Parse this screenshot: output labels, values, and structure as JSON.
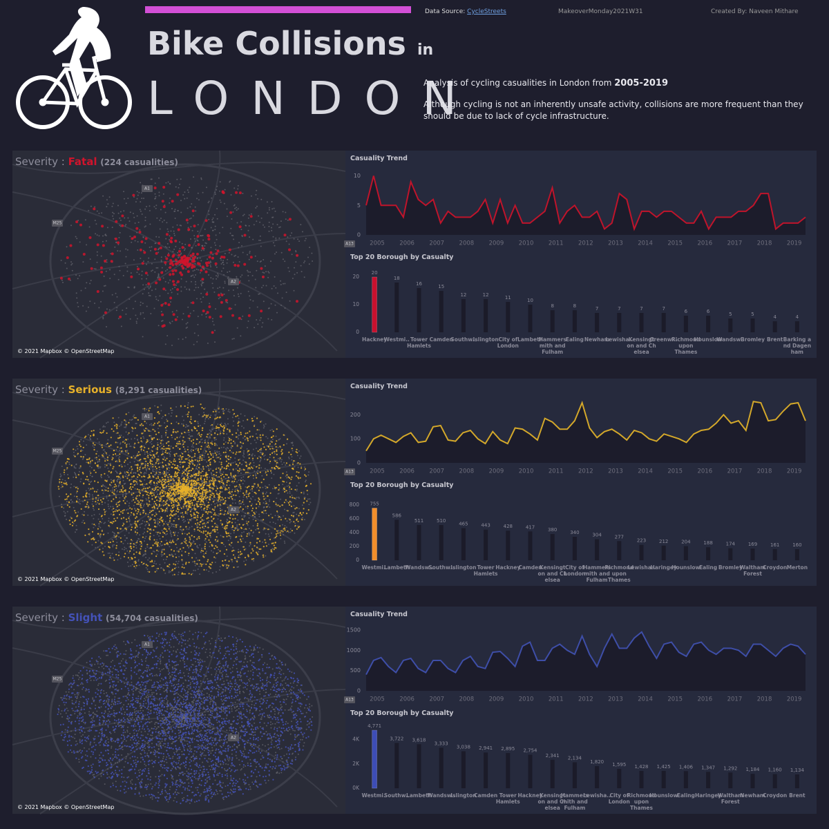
{
  "header": {
    "title": "Bike Collisions",
    "title_in": "in",
    "title_city": "LONDON",
    "source_label": "Data Source:",
    "source_link": "CycleStreets",
    "tag": "MakeoverMonday2021W31",
    "credit": "Created By: Naveen Mithare",
    "intro": "Analysis of cycling casualities in London from",
    "intro_years": "2005-2019",
    "description": "Although cycling is not an inherently unsafe activity, collisions are more frequent than they should be due to lack of cycle infrastructure."
  },
  "panels": [
    {
      "severity_label": "Severity :",
      "severity": "Fatal",
      "count": "(224 casualities)",
      "color": "#d0142c",
      "map_credit": "© 2021 Mapbox © OpenStreetMap",
      "map_labels": [
        "A1",
        "M25",
        "A13",
        "A2"
      ]
    },
    {
      "severity_label": "Severity :",
      "severity": "Serious",
      "count": "(8,291 casualities)",
      "color": "#e8b22a",
      "map_credit": "© 2021 Mapbox © OpenStreetMap",
      "map_labels": [
        "A1",
        "M25",
        "A13",
        "A2"
      ]
    },
    {
      "severity_label": "Severity :",
      "severity": "Slight",
      "count": "(54,704 casualities)",
      "color": "#4452b8",
      "map_credit": "© 2021 Mapbox © OpenStreetMap",
      "map_labels": [
        "A1",
        "M25",
        "A13",
        "A2"
      ]
    }
  ],
  "chart_data": [
    {
      "type": "line",
      "title": "Casuality Trend",
      "color": "#c0142b",
      "ylim": [
        0,
        11
      ],
      "yticks": [
        0,
        5,
        10
      ],
      "categories": [
        "2005",
        null,
        null,
        null,
        "2006",
        null,
        null,
        null,
        "2007",
        null,
        null,
        null,
        "2008",
        null,
        null,
        null,
        "2009",
        null,
        null,
        null,
        "2010",
        null,
        null,
        null,
        "2011",
        null,
        null,
        null,
        "2012",
        null,
        null,
        null,
        "2013",
        null,
        null,
        null,
        "2014",
        null,
        null,
        null,
        "2015",
        null,
        null,
        null,
        "2016",
        null,
        null,
        null,
        "2017",
        null,
        null,
        null,
        "2018",
        null,
        null,
        null,
        "2019",
        null,
        null,
        null
      ],
      "values": [
        5,
        10,
        5,
        5,
        5,
        3,
        9,
        6,
        5,
        6,
        2,
        4,
        3,
        3,
        3,
        4,
        6,
        2,
        6,
        2,
        5,
        2,
        2,
        3,
        4,
        8,
        2,
        4,
        5,
        3,
        3,
        4,
        1,
        2,
        7,
        6,
        1,
        4,
        4,
        3,
        4,
        4,
        3,
        2,
        2,
        4,
        1,
        3,
        3,
        3,
        4,
        4,
        5,
        7,
        7,
        1,
        2,
        2,
        2,
        3
      ]
    },
    {
      "type": "bar",
      "title": "Top 20 Borough by Casualty",
      "ylim": [
        0,
        22
      ],
      "yticks": [
        0,
        10,
        20
      ],
      "categories": [
        "Hackney",
        "Westmi..",
        "Tower\nHamlets",
        "Camden",
        "Southw..",
        "Islington",
        "City of\nLondon",
        "Lambeth",
        "Hammers\nmith and\nFulham",
        "Ealing",
        "Newham",
        "Lewisha..",
        "Kensingt\non and Ch\nelsea",
        "Greenwi..",
        "Richmond\nupon\nThames",
        "Hounslow",
        "Wandsw..",
        "Bromley",
        "Brent",
        "Barking a\nnd Dagen\nham"
      ],
      "values": [
        20,
        18,
        16,
        15,
        12,
        12,
        11,
        10,
        8,
        8,
        7,
        7,
        7,
        7,
        6,
        6,
        5,
        5,
        4,
        4
      ],
      "colors": [
        "#c8102e",
        "#1b1b29",
        "#1b1b29",
        "#1b1b29",
        "#1b1b29",
        "#1b1b29",
        "#1b1b29",
        "#1b1b29",
        "#1b1b29",
        "#1b1b29",
        "#1b1b29",
        "#1b1b29",
        "#1b1b29",
        "#1b1b29",
        "#1b1b29",
        "#1b1b29",
        "#1b1b29",
        "#1b1b29",
        "#1b1b29",
        "#1b1b29"
      ]
    },
    {
      "type": "line",
      "title": "Casuality Trend",
      "color": "#d4a82a",
      "ylim": [
        0,
        270
      ],
      "yticks": [
        0,
        100,
        200
      ],
      "categories": [
        "2005",
        null,
        null,
        null,
        "2006",
        null,
        null,
        null,
        "2007",
        null,
        null,
        null,
        "2008",
        null,
        null,
        null,
        "2009",
        null,
        null,
        null,
        "2010",
        null,
        null,
        null,
        "2011",
        null,
        null,
        null,
        "2012",
        null,
        null,
        null,
        "2013",
        null,
        null,
        null,
        "2014",
        null,
        null,
        null,
        "2015",
        null,
        null,
        null,
        "2016",
        null,
        null,
        null,
        "2017",
        null,
        null,
        null,
        "2018",
        null,
        null,
        null,
        "2019",
        null,
        null,
        null
      ],
      "values": [
        50,
        100,
        115,
        100,
        85,
        110,
        125,
        85,
        90,
        150,
        155,
        95,
        90,
        125,
        135,
        100,
        80,
        130,
        95,
        80,
        145,
        140,
        120,
        95,
        185,
        170,
        140,
        140,
        175,
        250,
        145,
        105,
        130,
        140,
        120,
        95,
        135,
        125,
        100,
        90,
        120,
        110,
        100,
        85,
        120,
        135,
        140,
        165,
        200,
        165,
        175,
        135,
        255,
        250,
        175,
        180,
        215,
        245,
        250,
        175
      ]
    },
    {
      "type": "bar",
      "title": "Top 20 Borough by Casualty",
      "ylim": [
        0,
        880
      ],
      "yticks": [
        0,
        200,
        400,
        600,
        800
      ],
      "categories": [
        "Westmi..",
        "Lambeth",
        "Wandsw..",
        "Southw..",
        "Islington",
        "Tower\nHamlets",
        "Hackney",
        "Camden",
        "Kensingt\non and Ch\nelsea",
        "City of\nLondon",
        "Hammers\nmith and\nFulham",
        "Richmond\nupon\nThames",
        "Lewisha..",
        "Haringey",
        "Hounslow",
        "Ealing",
        "Bromley",
        "Waltham\nForest",
        "Croydon",
        "Merton"
      ],
      "values": [
        755,
        586,
        511,
        510,
        465,
        443,
        428,
        417,
        380,
        340,
        304,
        277,
        223,
        212,
        204,
        188,
        174,
        169,
        161,
        160
      ],
      "colors": [
        "#f28e2b",
        "#1b1b29",
        "#1b1b29",
        "#1b1b29",
        "#1b1b29",
        "#1b1b29",
        "#1b1b29",
        "#1b1b29",
        "#1b1b29",
        "#1b1b29",
        "#1b1b29",
        "#1b1b29",
        "#1b1b29",
        "#1b1b29",
        "#1b1b29",
        "#1b1b29",
        "#1b1b29",
        "#1b1b29",
        "#1b1b29",
        "#1b1b29"
      ]
    },
    {
      "type": "line",
      "title": "Casuality Trend",
      "color": "#3e4ea8",
      "ylim": [
        0,
        1600
      ],
      "yticks": [
        0,
        500,
        1000,
        1500
      ],
      "categories": [
        "2005",
        null,
        null,
        null,
        "2006",
        null,
        null,
        null,
        "2007",
        null,
        null,
        null,
        "2008",
        null,
        null,
        null,
        "2009",
        null,
        null,
        null,
        "2010",
        null,
        null,
        null,
        "2011",
        null,
        null,
        null,
        "2012",
        null,
        null,
        null,
        "2013",
        null,
        null,
        null,
        "2014",
        null,
        null,
        null,
        "2015",
        null,
        null,
        null,
        "2016",
        null,
        null,
        null,
        "2017",
        null,
        null,
        null,
        "2018",
        null,
        null,
        null,
        "2019",
        null,
        null,
        null
      ],
      "values": [
        400,
        750,
        820,
        600,
        450,
        750,
        800,
        550,
        450,
        750,
        750,
        550,
        450,
        750,
        850,
        600,
        550,
        950,
        970,
        800,
        600,
        1100,
        1200,
        750,
        750,
        1050,
        1150,
        1000,
        900,
        1350,
        900,
        600,
        1050,
        1400,
        1050,
        1050,
        1300,
        1450,
        1100,
        800,
        1150,
        1200,
        950,
        850,
        1150,
        1200,
        1000,
        900,
        1050,
        1050,
        1000,
        850,
        1150,
        1150,
        1000,
        850,
        1050,
        1150,
        1100,
        900
      ]
    },
    {
      "type": "bar",
      "title": "Top 20 Borough by Casualty",
      "ylim": [
        0,
        5000
      ],
      "yticks": [
        {
          "value": 0,
          "label": "0K"
        },
        {
          "value": 2000,
          "label": "2K"
        },
        {
          "value": 4000,
          "label": "4K"
        }
      ],
      "categories": [
        "Westmi..",
        "Southw..",
        "Lambeth",
        "Wandsw..",
        "Islington",
        "Camden",
        "Tower\nHamlets",
        "Hackney",
        "Kensingt\non and Ch\nelsea",
        "Hammers\nmith and\nFulham",
        "Lewisha..",
        "City of\nLondon",
        "Richmond\nupon\nThames",
        "Hounslow",
        "Ealing",
        "Haringey",
        "Waltham\nForest",
        "Newham",
        "Croydon",
        "Brent"
      ],
      "values": [
        4771,
        3722,
        3618,
        3333,
        3038,
        2941,
        2895,
        2754,
        2341,
        2134,
        1820,
        1595,
        1428,
        1425,
        1406,
        1347,
        1292,
        1184,
        1160,
        1134
      ],
      "value_labels": [
        "4,771",
        "3,722",
        "3,618",
        "3,333",
        "3,038",
        "2,941",
        "2,895",
        "2,754",
        "2,341",
        "2,134",
        "1,820",
        "1,595",
        "1,428",
        "1,425",
        "1,406",
        "1,347",
        "1,292",
        "1,184",
        "1,160",
        "1,134"
      ],
      "colors": [
        "#3d4db7",
        "#1b1b29",
        "#1b1b29",
        "#1b1b29",
        "#1b1b29",
        "#1b1b29",
        "#1b1b29",
        "#1b1b29",
        "#1b1b29",
        "#1b1b29",
        "#1b1b29",
        "#1b1b29",
        "#1b1b29",
        "#1b1b29",
        "#1b1b29",
        "#1b1b29",
        "#1b1b29",
        "#1b1b29",
        "#1b1b29",
        "#1b1b29"
      ]
    }
  ]
}
